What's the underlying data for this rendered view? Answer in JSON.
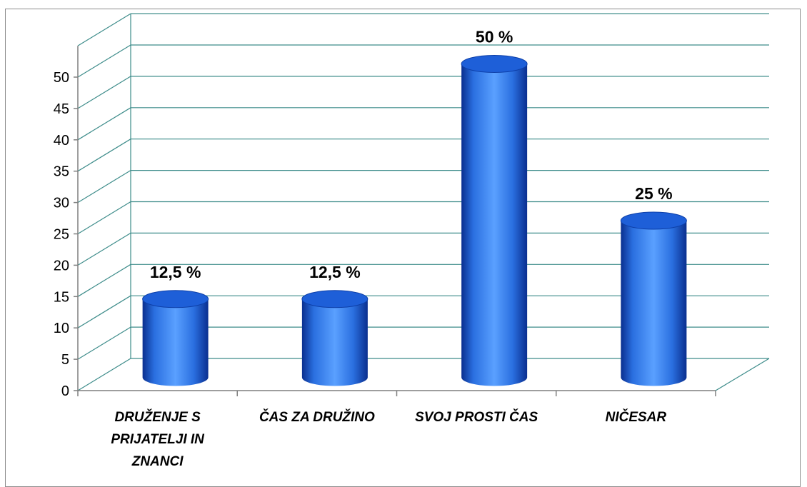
{
  "chart_data": {
    "type": "bar",
    "title": "",
    "xlabel": "",
    "ylabel": "",
    "categories": [
      [
        "DRUŽENJE S",
        "PRIJATELJI IN",
        "ZNANCI"
      ],
      [
        "ČAS ZA DRUŽINO"
      ],
      [
        "SVOJ PROSTI ČAS"
      ],
      [
        "NIČESAR"
      ]
    ],
    "values": [
      12.5,
      12.5,
      50,
      25
    ],
    "data_labels": [
      "12,5 %",
      "12,5 %",
      "50 %",
      "25 %"
    ],
    "ylim": [
      0,
      50
    ],
    "yticks": [
      0,
      5,
      10,
      15,
      20,
      25,
      30,
      35,
      40,
      45,
      50
    ],
    "grid": true,
    "legend": "none",
    "style": "3d-cylinder",
    "colors": {
      "bar_light": "#5aa0ff",
      "bar_mid": "#2a6fe0",
      "bar_dark": "#0a2f8f",
      "top_fill": "#1e5fd8",
      "grid": "#3d8c8a",
      "axis": "#7f7f7f"
    }
  }
}
